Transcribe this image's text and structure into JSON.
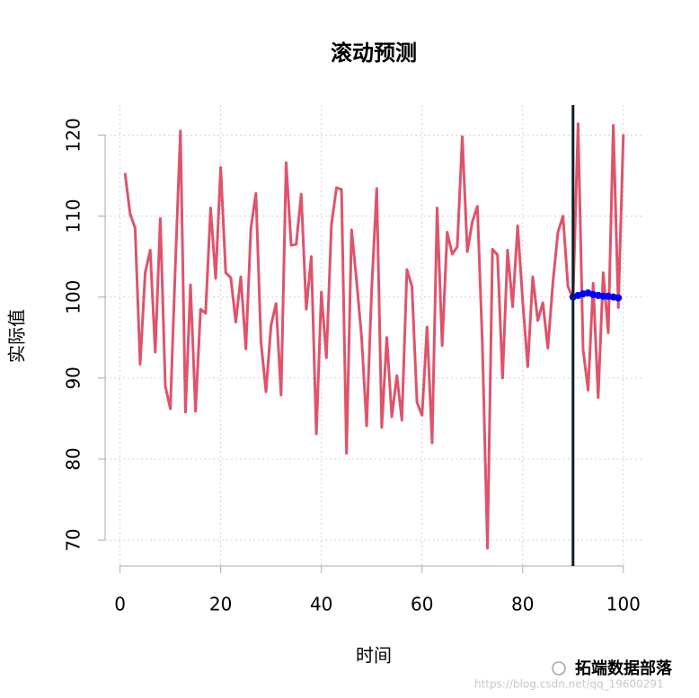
{
  "chart_data": {
    "type": "line",
    "title": "滚动预测",
    "x_label": "时间",
    "y_label": "实际值",
    "xlim": [
      -2.96,
      103.96
    ],
    "ylim": [
      66.8,
      123.7
    ],
    "xticks": [
      0,
      20,
      40,
      60,
      80,
      100
    ],
    "yticks": [
      70,
      80,
      90,
      100,
      110,
      120
    ],
    "grid": true,
    "vline": {
      "x": 90,
      "color": "#0d1f2d"
    },
    "series": [
      {
        "color": "#df536b",
        "marker": false,
        "x": [
          1,
          2,
          3,
          4,
          5,
          6,
          7,
          8,
          9,
          10,
          11,
          12,
          13,
          14,
          15,
          16,
          17,
          18,
          19,
          20,
          21,
          22,
          23,
          24,
          25,
          26,
          27,
          28,
          29,
          30,
          31,
          32,
          33,
          34,
          35,
          36,
          37,
          38,
          39,
          40,
          41,
          42,
          43,
          44,
          45,
          46,
          47,
          48,
          49,
          50,
          51,
          52,
          53,
          54,
          55,
          56,
          57,
          58,
          59,
          60,
          61,
          62,
          63,
          64,
          65,
          66,
          67,
          68,
          69,
          70,
          71,
          72,
          73,
          74,
          75,
          76,
          77,
          78,
          79,
          80,
          81,
          82,
          83,
          84,
          85,
          86,
          87,
          88,
          89,
          90,
          91,
          92,
          93,
          94,
          95,
          96,
          97,
          98,
          99,
          100
        ],
        "values": [
          115.3,
          110.3,
          108.5,
          91.7,
          103,
          105.8,
          93.2,
          109.7,
          89,
          86.2,
          104,
          120.5,
          85.8,
          101.5,
          85.9,
          98.5,
          98,
          111,
          102.3,
          116,
          103,
          102.4,
          96.9,
          102.5,
          93.6,
          108.5,
          112.8,
          94.5,
          88.3,
          96.5,
          99.2,
          87.9,
          116.6,
          106.4,
          106.5,
          112.7,
          98.5,
          105,
          83.1,
          100.6,
          92.5,
          108.9,
          113.5,
          113.3,
          80.7,
          108.3,
          102,
          95,
          84.1,
          101,
          113.4,
          83.9,
          95,
          85.2,
          90.3,
          84.8,
          103.4,
          101.3,
          87,
          85.4,
          96.3,
          82,
          111,
          94,
          108,
          105.3,
          106.2,
          119.8,
          105.6,
          109.3,
          111.2,
          94,
          69,
          105.9,
          105.2,
          90,
          105.8,
          98.8,
          108.8,
          99.5,
          91.4,
          102.5,
          97.1,
          99.3,
          93.7,
          101.8,
          108,
          110,
          101.3,
          99.8,
          121.4,
          93.5,
          88.5,
          101.7,
          87.6,
          103,
          95.6,
          121.2,
          98.7,
          120.1
        ]
      },
      {
        "color": "#0000ff",
        "marker": true,
        "x": [
          90,
          91,
          92,
          93,
          94,
          95,
          96,
          97,
          98,
          99
        ],
        "values": [
          100,
          100.2,
          100.4,
          100.5,
          100.3,
          100.2,
          100.1,
          100.1,
          100,
          99.9
        ]
      }
    ]
  },
  "watermark": {
    "brand": "拓端数据部落",
    "url": "https://blog.csdn.net/qq_19600291"
  }
}
